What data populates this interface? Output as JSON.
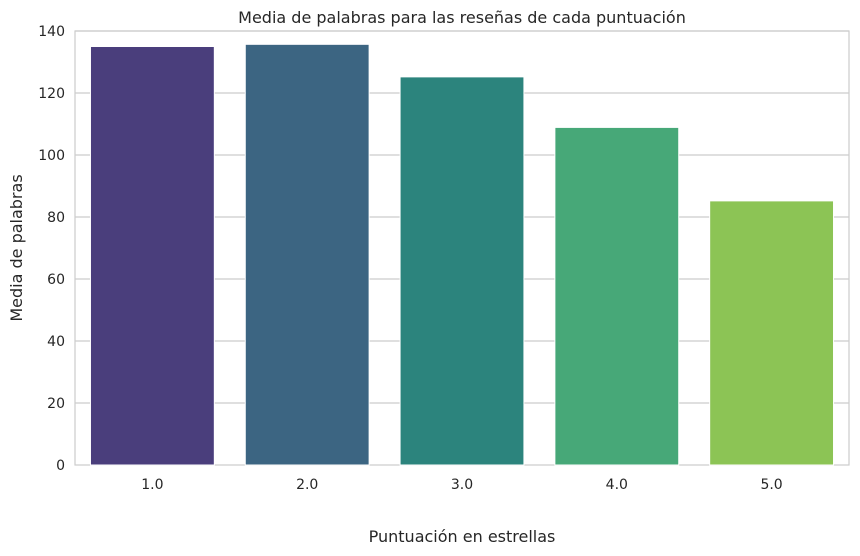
{
  "chart_data": {
    "type": "bar",
    "title": "Media de palabras para las reseñas de cada puntuación",
    "xlabel": "Puntuación en estrellas",
    "ylabel": "Media de palabras",
    "categories": [
      "1.0",
      "2.0",
      "3.0",
      "4.0",
      "5.0"
    ],
    "values": [
      135,
      135.7,
      125.2,
      108.9,
      85.2
    ],
    "ylim": [
      0,
      140
    ],
    "yticks": [
      "0",
      "20",
      "40",
      "60",
      "80",
      "100",
      "120",
      "140"
    ],
    "grid": true,
    "colors": [
      "#4a3e7c",
      "#3c6582",
      "#2c847d",
      "#47a878",
      "#8cc455"
    ]
  }
}
